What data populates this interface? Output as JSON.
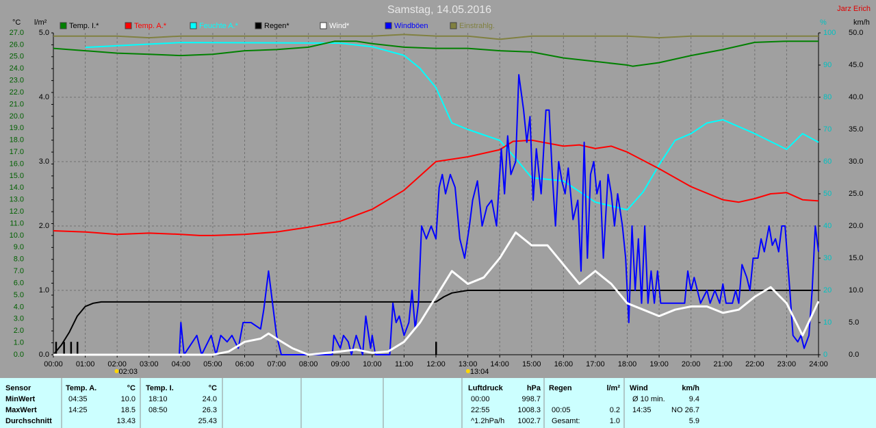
{
  "chart_data": {
    "type": "line",
    "title": "Samstag, 14.05.2016",
    "author": "Jarz Erich",
    "y_label": "°C",
    "y2_label": "l/m²",
    "y3_label": "%",
    "y4_label": "km/h",
    "xlim": [
      0,
      24
    ],
    "xticks": [
      {
        "value": 0,
        "label": "00:00"
      },
      {
        "value": 1,
        "label": "01:00"
      },
      {
        "value": 2,
        "label": "02:00"
      },
      {
        "value": 3,
        "label": "03:00"
      },
      {
        "value": 4,
        "label": "04:00"
      },
      {
        "value": 5,
        "label": "05:00"
      },
      {
        "value": 6,
        "label": "06:00"
      },
      {
        "value": 7,
        "label": "07:00"
      },
      {
        "value": 8,
        "label": "08:00"
      },
      {
        "value": 9,
        "label": "09:00"
      },
      {
        "value": 10,
        "label": "10:00"
      },
      {
        "value": 11,
        "label": "11:00"
      },
      {
        "value": 12,
        "label": "12:00"
      },
      {
        "value": 13,
        "label": "13:00"
      },
      {
        "value": 14,
        "label": "14:00"
      },
      {
        "value": 15,
        "label": "15:00"
      },
      {
        "value": 16,
        "label": "16:00"
      },
      {
        "value": 17,
        "label": "17:00"
      },
      {
        "value": 18,
        "label": "18:00"
      },
      {
        "value": 19,
        "label": "19:00"
      },
      {
        "value": 20,
        "label": "20:00"
      },
      {
        "value": 21,
        "label": "21:00"
      },
      {
        "value": 22,
        "label": "22:00"
      },
      {
        "value": 23,
        "label": "23:00"
      },
      {
        "value": 24,
        "label": "24:00"
      }
    ],
    "ylim": [
      0,
      27
    ],
    "yticks": [
      {
        "value": 0,
        "label": "0.0"
      },
      {
        "value": 1,
        "label": "1.0"
      },
      {
        "value": 2,
        "label": "2.0"
      },
      {
        "value": 3,
        "label": "3.0"
      },
      {
        "value": 4,
        "label": "4.0"
      },
      {
        "value": 5,
        "label": "5.0"
      },
      {
        "value": 6,
        "label": "6.0"
      },
      {
        "value": 7,
        "label": "7.0"
      },
      {
        "value": 8,
        "label": "8.0"
      },
      {
        "value": 9,
        "label": "9.0"
      },
      {
        "value": 10,
        "label": "10.0"
      },
      {
        "value": 11,
        "label": "11.0"
      },
      {
        "value": 12,
        "label": "12.0"
      },
      {
        "value": 13,
        "label": "13.0"
      },
      {
        "value": 14,
        "label": "14.0"
      },
      {
        "value": 15,
        "label": "15.0"
      },
      {
        "value": 16,
        "label": "16.0"
      },
      {
        "value": 17,
        "label": "17.0"
      },
      {
        "value": 18,
        "label": "18.0"
      },
      {
        "value": 19,
        "label": "19.0"
      },
      {
        "value": 20,
        "label": "20.0"
      },
      {
        "value": 21,
        "label": "21.0"
      },
      {
        "value": 22,
        "label": "22.0"
      },
      {
        "value": 23,
        "label": "23.0"
      },
      {
        "value": 24,
        "label": "24.0"
      },
      {
        "value": 25,
        "label": "25.0"
      },
      {
        "value": 26,
        "label": "26.0"
      },
      {
        "value": 27,
        "label": "27.0"
      }
    ],
    "y2lim": [
      0,
      5
    ],
    "y2ticks": [
      {
        "value": 0,
        "label": "0.0"
      },
      {
        "value": 1,
        "label": "1.0"
      },
      {
        "value": 2,
        "label": "2.0"
      },
      {
        "value": 3,
        "label": "3.0"
      },
      {
        "value": 4,
        "label": "4.0"
      },
      {
        "value": 5,
        "label": "5.0"
      }
    ],
    "y3lim": [
      0,
      100
    ],
    "y3ticks": [
      0,
      10,
      20,
      30,
      40,
      50,
      60,
      70,
      80,
      90,
      100
    ],
    "y4lim": [
      0,
      50
    ],
    "y4ticks": [
      {
        "value": 0,
        "label": "0.0"
      },
      {
        "value": 5,
        "label": "5.0"
      },
      {
        "value": 10,
        "label": "10.0"
      },
      {
        "value": 15,
        "label": "15.0"
      },
      {
        "value": 20,
        "label": "20.0"
      },
      {
        "value": 25,
        "label": "25.0"
      },
      {
        "value": 30,
        "label": "30.0"
      },
      {
        "value": 35,
        "label": "35.0"
      },
      {
        "value": 40,
        "label": "40.0"
      },
      {
        "value": 45,
        "label": "45.0"
      },
      {
        "value": 50,
        "label": "50.0"
      }
    ],
    "grid": true,
    "annotations": [
      {
        "x": 2.05,
        "label": "02:03"
      },
      {
        "x": 13.07,
        "label": "13:04"
      }
    ],
    "bars": {
      "axis": "y2",
      "color": "#000000",
      "x": [
        0.08,
        0.33,
        0.55,
        0.75,
        12.0
      ],
      "values": [
        0.2,
        0.2,
        0.2,
        0.2,
        0.2
      ]
    },
    "series": [
      {
        "name": "Temp. I.*",
        "color": "#008000",
        "axis": "y",
        "x": [
          0,
          1,
          2,
          3,
          4,
          5,
          6,
          7,
          8,
          8.83,
          9.5,
          10,
          11,
          12,
          13,
          14,
          15,
          16,
          17,
          18,
          18.17,
          19,
          20,
          21,
          22,
          23,
          24
        ],
        "values": [
          25.7,
          25.5,
          25.3,
          25.2,
          25.1,
          25.2,
          25.5,
          25.6,
          25.8,
          26.3,
          26.3,
          26.1,
          25.8,
          25.7,
          25.7,
          25.5,
          25.4,
          24.9,
          24.6,
          24.3,
          24.2,
          24.5,
          25.1,
          25.6,
          26.2,
          26.3,
          26.3
        ]
      },
      {
        "name": "Temp. A.*",
        "color": "#ff0000",
        "axis": "y",
        "x": [
          0,
          1,
          2,
          3,
          4,
          4.58,
          5,
          6,
          7,
          8,
          9,
          10,
          11,
          11.5,
          12,
          13,
          14,
          14.42,
          15,
          16,
          16.5,
          17,
          17.5,
          18,
          19,
          20,
          21,
          21.5,
          22,
          22.5,
          23,
          23.5,
          24
        ],
        "values": [
          10.4,
          10.3,
          10.1,
          10.2,
          10.1,
          10.0,
          10.0,
          10.1,
          10.3,
          10.7,
          11.2,
          12.2,
          13.8,
          15.0,
          16.2,
          16.6,
          17.2,
          17.9,
          18.0,
          17.5,
          17.6,
          17.3,
          17.5,
          17.0,
          15.6,
          14.1,
          13.0,
          12.8,
          13.1,
          13.5,
          13.6,
          13.0,
          12.9
        ]
      },
      {
        "name": "Feuchte A.*",
        "color": "#00ffff",
        "axis": "y3",
        "x": [
          1,
          2,
          4,
          9,
          10,
          11,
          11.5,
          12,
          12.5,
          13,
          14,
          14.5,
          15,
          16,
          17,
          18,
          18.5,
          19,
          19.5,
          20,
          20.5,
          21,
          22,
          23,
          23.5,
          24
        ],
        "values": [
          95.5,
          96,
          97,
          96.8,
          95.7,
          93,
          89,
          83,
          72,
          70,
          66.6,
          61,
          55,
          54,
          47.4,
          45,
          50.6,
          59,
          66.6,
          68.7,
          72,
          73,
          68.7,
          63.8,
          68.7,
          66
        ]
      },
      {
        "name": "Regen*",
        "color": "#000000",
        "axis": "y2",
        "x": [
          0,
          0.25,
          0.5,
          0.75,
          1,
          1.25,
          1.5,
          2,
          12,
          12.25,
          12.5,
          13,
          24
        ],
        "values": [
          0,
          0.15,
          0.35,
          0.6,
          0.75,
          0.8,
          0.82,
          0.82,
          0.82,
          0.9,
          0.96,
          1.0,
          1.0
        ]
      },
      {
        "name": "Wind*",
        "color": "#ffffff",
        "axis": "y4",
        "x": [
          0,
          5,
          5.5,
          6,
          6.5,
          6.75,
          7,
          7.5,
          8,
          9,
          9.5,
          10,
          10.5,
          11,
          11.5,
          12,
          12.5,
          13,
          13.5,
          14,
          14.5,
          15,
          15.5,
          16,
          16.5,
          17,
          17.5,
          18,
          18.5,
          19,
          19.5,
          20,
          20.5,
          21,
          21.5,
          22,
          22.5,
          23,
          23.5,
          24
        ],
        "values": [
          0,
          0,
          0.5,
          2,
          2.5,
          3.3,
          2.5,
          1,
          0,
          0.5,
          0.8,
          0.3,
          0.5,
          2,
          5,
          9,
          13,
          11,
          12,
          15,
          19,
          17,
          17,
          14,
          11,
          13,
          11,
          8,
          7,
          6,
          7,
          7.5,
          7.5,
          6.5,
          7,
          9,
          10.5,
          8,
          3,
          8.3
        ]
      },
      {
        "name": "Windböen",
        "color": "#0000ff",
        "axis": "y4",
        "x": [
          0,
          3.95,
          4,
          4.1,
          4.5,
          4.65,
          4.95,
          5.1,
          5.25,
          5.45,
          5.6,
          5.8,
          5.95,
          6.2,
          6.5,
          6.6,
          6.75,
          6.9,
          7,
          7.15,
          8.75,
          8.8,
          9,
          9.1,
          9.25,
          9.35,
          9.5,
          9.7,
          9.8,
          9.95,
          10,
          10.1,
          10.55,
          10.65,
          10.75,
          10.85,
          11,
          11.15,
          11.25,
          11.35,
          11.45,
          11.55,
          11.7,
          11.85,
          12,
          12.1,
          12.2,
          12.3,
          12.45,
          12.6,
          12.75,
          12.9,
          13.05,
          13.15,
          13.3,
          13.45,
          13.6,
          13.75,
          13.9,
          14.05,
          14.15,
          14.25,
          14.35,
          14.5,
          14.6,
          14.75,
          14.85,
          14.95,
          15.05,
          15.15,
          15.3,
          15.45,
          15.55,
          15.65,
          15.75,
          15.85,
          15.95,
          16.05,
          16.15,
          16.3,
          16.45,
          16.55,
          16.65,
          16.75,
          16.85,
          16.95,
          17.05,
          17.15,
          17.25,
          17.4,
          17.5,
          17.6,
          17.7,
          17.85,
          17.95,
          18.05,
          18.15,
          18.25,
          18.35,
          18.45,
          18.55,
          18.65,
          18.75,
          18.85,
          18.95,
          19.05,
          19.8,
          19.9,
          20,
          20.1,
          20.2,
          20.3,
          20.5,
          20.6,
          20.75,
          20.9,
          21,
          21.1,
          21.3,
          21.4,
          21.5,
          21.6,
          21.75,
          21.85,
          21.95,
          22.1,
          22.2,
          22.3,
          22.45,
          22.55,
          22.65,
          22.75,
          22.85,
          22.95,
          23.1,
          23.2,
          23.35,
          23.45,
          23.55,
          23.7,
          23.8,
          23.9,
          24
        ],
        "values": [
          0,
          0,
          5,
          0,
          3,
          0,
          3,
          0,
          3,
          2,
          3,
          1,
          5,
          5,
          4,
          7,
          13,
          7,
          3,
          0,
          0,
          3,
          1,
          3,
          2,
          0,
          3,
          0,
          6,
          1,
          3,
          0,
          0,
          8,
          5,
          6,
          3,
          5,
          10,
          4,
          8,
          20,
          18,
          20,
          18,
          26,
          28,
          25,
          28,
          26,
          18,
          15,
          20,
          24,
          27,
          20,
          23,
          24,
          20,
          32,
          25,
          34,
          28,
          30,
          43.5,
          38,
          33,
          37,
          24,
          32,
          25,
          38,
          38,
          28,
          20,
          30,
          27,
          25,
          29,
          21,
          24,
          13,
          33,
          15,
          28,
          30,
          25,
          27,
          15,
          28,
          25,
          20,
          25,
          20,
          15,
          5,
          20,
          10,
          18,
          8,
          20,
          8,
          13,
          8,
          13,
          8,
          8,
          13,
          10,
          12,
          10,
          8,
          10,
          8,
          10,
          8,
          11,
          8,
          8,
          10,
          8,
          14,
          12,
          10,
          15,
          15,
          18,
          16,
          20,
          17,
          18,
          16,
          20,
          20,
          10,
          3,
          2,
          3,
          1,
          3,
          10,
          20,
          16
        ]
      },
      {
        "name": "Einstrahlg.",
        "color": "#808040",
        "axis": "y3",
        "x": [
          0,
          1,
          2,
          3,
          4,
          5,
          6,
          7,
          8,
          9,
          10,
          11,
          12,
          13,
          14,
          15,
          16,
          17,
          18,
          19,
          20,
          21,
          22,
          23,
          24
        ],
        "values": [
          99,
          99,
          99,
          98.5,
          99,
          99,
          99,
          99,
          99,
          99,
          99,
          99.5,
          99,
          99,
          98,
          99,
          99,
          99,
          99,
          98.5,
          99,
          99,
          99,
          99,
          99
        ]
      }
    ]
  },
  "table": {
    "header": [
      "Sensor",
      "Temp. A.",
      "°C",
      "Temp. I.",
      "°C",
      "Luftdruck",
      "hPa",
      "Regen",
      "l/m²",
      "Wind",
      "km/h"
    ],
    "rows": [
      [
        "MinWert",
        "04:35",
        "10.0",
        "18:10",
        "24.0",
        "00:00",
        "998.7",
        null,
        null,
        "Ø 10 min.",
        "9.4"
      ],
      [
        "MaxWert",
        "14:25",
        "18.5",
        "08:50",
        "26.3",
        "22:55",
        "1008.3",
        "00:05",
        "0.2",
        "14:35",
        "NO 26.7"
      ],
      [
        "Durchschnitt",
        null,
        "13.43",
        null,
        "25.43",
        "^1.2hPa/h",
        "1002.7",
        "Gesamt:",
        "1.0",
        null,
        "5.9"
      ]
    ]
  }
}
